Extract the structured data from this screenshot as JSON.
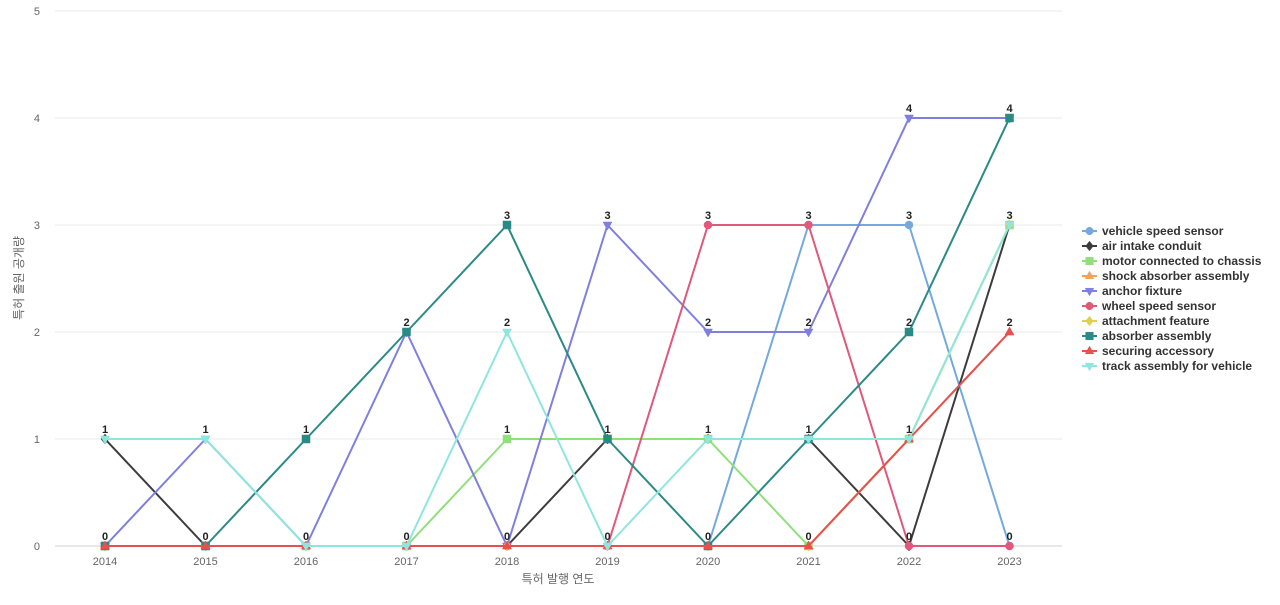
{
  "chart_data": {
    "type": "line",
    "title": "",
    "xlabel": "특허 발행 연도",
    "ylabel": "특허 출원 공개량",
    "x": [
      "2014",
      "2015",
      "2016",
      "2017",
      "2018",
      "2019",
      "2020",
      "2021",
      "2022",
      "2023"
    ],
    "ylim": [
      0,
      5
    ],
    "yticks": [
      0,
      1,
      2,
      3,
      4,
      5
    ],
    "grid": "horizontal",
    "legend_position": "right",
    "series": [
      {
        "name": "vehicle speed sensor",
        "color": "#74a9e0",
        "marker": "circle",
        "values": [
          0,
          0,
          0,
          0,
          0,
          0,
          0,
          3,
          3,
          0
        ]
      },
      {
        "name": "air intake conduit",
        "color": "#3c3c3c",
        "marker": "diamond",
        "values": [
          1,
          0,
          0,
          0,
          0,
          1,
          1,
          1,
          0,
          3
        ]
      },
      {
        "name": "motor connected to chassis",
        "color": "#8fe07a",
        "marker": "square",
        "values": [
          0,
          0,
          0,
          0,
          1,
          1,
          1,
          0,
          1,
          3
        ]
      },
      {
        "name": "shock absorber assembly",
        "color": "#f0a25a",
        "marker": "triangle-up",
        "values": [
          0,
          0,
          0,
          0,
          0,
          0,
          0,
          0,
          1,
          2
        ]
      },
      {
        "name": "anchor fixture",
        "color": "#7f7fe0",
        "marker": "triangle-down",
        "values": [
          0,
          1,
          0,
          2,
          0,
          3,
          2,
          2,
          4,
          4
        ]
      },
      {
        "name": "wheel speed sensor",
        "color": "#e0587a",
        "marker": "circle",
        "values": [
          0,
          0,
          0,
          0,
          0,
          0,
          3,
          3,
          0,
          0
        ]
      },
      {
        "name": "attachment feature",
        "color": "#e0d050",
        "marker": "diamond",
        "values": [
          0,
          0,
          0,
          0,
          0,
          0,
          0,
          0,
          1,
          3
        ]
      },
      {
        "name": "absorber assembly",
        "color": "#2a8a86",
        "marker": "square",
        "values": [
          0,
          0,
          1,
          2,
          3,
          1,
          0,
          1,
          2,
          4
        ]
      },
      {
        "name": "securing accessory",
        "color": "#e85050",
        "marker": "triangle-up",
        "values": [
          0,
          0,
          0,
          0,
          0,
          0,
          0,
          0,
          1,
          2
        ]
      },
      {
        "name": "track assembly for vehicle",
        "color": "#8ee6df",
        "marker": "triangle-down",
        "values": [
          1,
          1,
          0,
          0,
          2,
          0,
          1,
          1,
          1,
          3
        ]
      }
    ],
    "data_labels": [
      {
        "x": "2014",
        "values": [
          1,
          0
        ]
      },
      {
        "x": "2015",
        "values": [
          1,
          0
        ]
      },
      {
        "x": "2016",
        "values": [
          1,
          0
        ]
      },
      {
        "x": "2017",
        "values": [
          2,
          0
        ]
      },
      {
        "x": "2018",
        "values": [
          3,
          2,
          1,
          0
        ]
      },
      {
        "x": "2019",
        "values": [
          3,
          1,
          0
        ]
      },
      {
        "x": "2020",
        "values": [
          3,
          2,
          1,
          0
        ]
      },
      {
        "x": "2021",
        "values": [
          3,
          2,
          1,
          0
        ]
      },
      {
        "x": "2022",
        "values": [
          4,
          3,
          2,
          1,
          0
        ]
      },
      {
        "x": "2023",
        "values": [
          4,
          3,
          2,
          0
        ]
      }
    ]
  }
}
